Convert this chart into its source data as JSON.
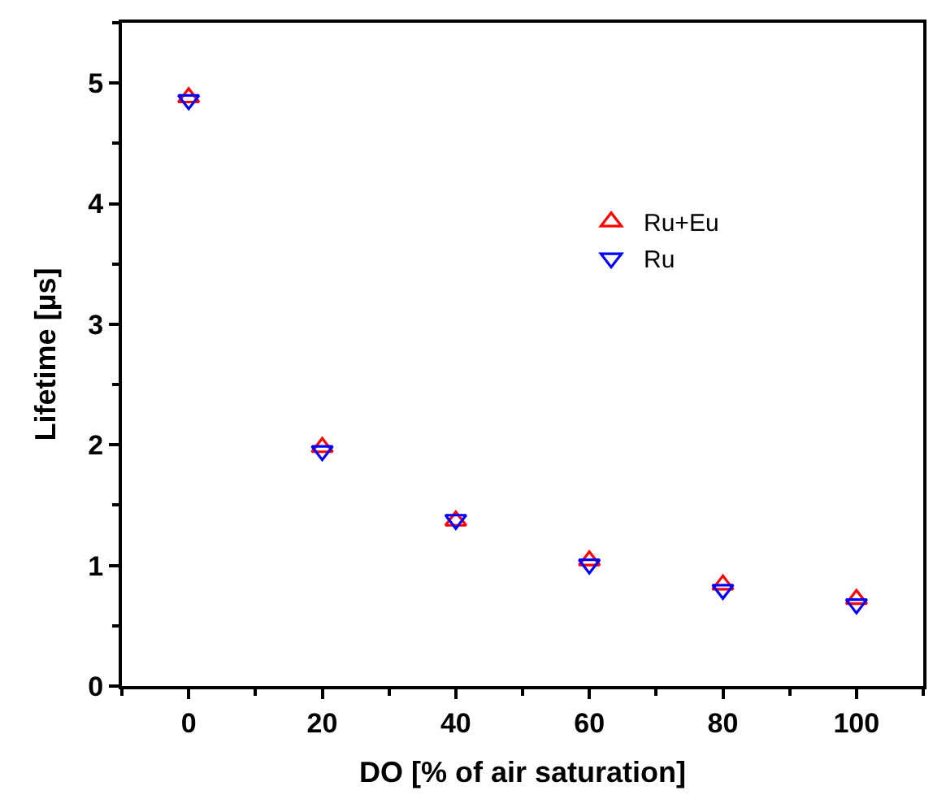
{
  "chart_data": {
    "type": "scatter",
    "xlabel": "DO [% of air saturation]",
    "ylabel": "Lifetime [µs]",
    "x": [
      0,
      20,
      40,
      60,
      80,
      100
    ],
    "series": [
      {
        "name": "Ru+Eu",
        "color": "#ff0000",
        "marker": "triangle-up",
        "values": [
          4.88,
          1.98,
          1.37,
          1.04,
          0.84,
          0.72
        ]
      },
      {
        "name": "Ru",
        "color": "#0000ff",
        "marker": "triangle-down",
        "values": [
          4.86,
          1.95,
          1.38,
          1.01,
          0.8,
          0.68
        ]
      }
    ],
    "xlim": [
      -10,
      110
    ],
    "xticks": [
      0,
      20,
      40,
      60,
      80,
      100
    ],
    "ylim": [
      0,
      5.5
    ],
    "yticks": [
      0,
      1,
      2,
      3,
      4,
      5
    ],
    "legend": "top right"
  }
}
